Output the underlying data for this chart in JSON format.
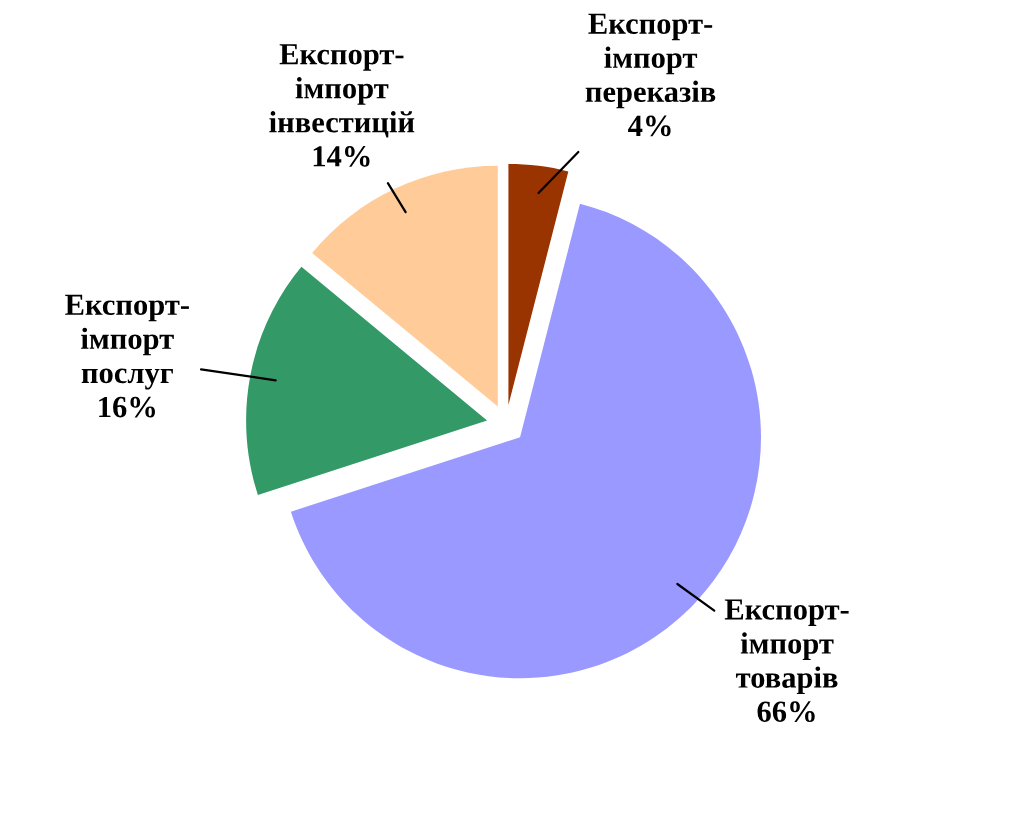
{
  "chart_data": {
    "type": "pie",
    "categories": [
      "Експорт-імпорт переказів",
      "Експорт-імпорт товарів",
      "Експорт-імпорт послуг",
      "Експорт-імпорт інвестицій"
    ],
    "values": [
      4,
      66,
      16,
      14
    ],
    "colors": [
      "#993300",
      "#9999ff",
      "#339966",
      "#ffcc99"
    ],
    "value_labels": [
      "4%",
      "66%",
      "16%",
      "14%"
    ],
    "legend": false
  }
}
